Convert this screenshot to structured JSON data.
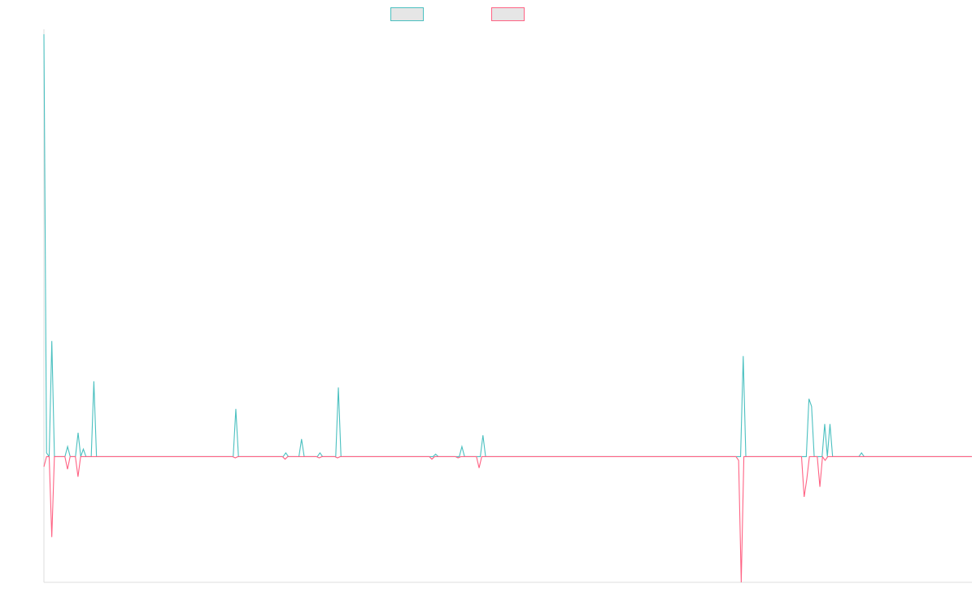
{
  "chart_data": {
    "type": "line",
    "title": "",
    "xlabel": "",
    "ylabel": "",
    "ylim": [
      -1.0,
      3.4
    ],
    "grid": false,
    "legend": {
      "position": "top-center",
      "show_text": false
    },
    "series": [
      {
        "color": "#4bc0c0",
        "fill": "#e6e6e6",
        "values": [
          3.36,
          0.03,
          0,
          0.92,
          0,
          0,
          0,
          0,
          0,
          0.08,
          0,
          0,
          0,
          0.19,
          0,
          0.06,
          0,
          0,
          0,
          0.6,
          0,
          0,
          0,
          0,
          0,
          0,
          0,
          0,
          0,
          0,
          0,
          0,
          0,
          0,
          0,
          0,
          0,
          0,
          0,
          0,
          0,
          0,
          0,
          0,
          0,
          0,
          0,
          0,
          0,
          0,
          0,
          0,
          0,
          0,
          0,
          0,
          0,
          0,
          0,
          0,
          0,
          0,
          0,
          0,
          0,
          0,
          0,
          0,
          0,
          0,
          0,
          0,
          0,
          0.38,
          0,
          0,
          0,
          0,
          0,
          0,
          0,
          0,
          0,
          0,
          0,
          0,
          0,
          0,
          0,
          0,
          0,
          0,
          0.03,
          0,
          0,
          0,
          0,
          0,
          0.14,
          0,
          0,
          0,
          0,
          0,
          0,
          0.03,
          0,
          0,
          0,
          0,
          0,
          0,
          0.55,
          0,
          0,
          0,
          0,
          0,
          0,
          0,
          0,
          0,
          0,
          0,
          0,
          0,
          0,
          0,
          0,
          0,
          0,
          0,
          0,
          0,
          0,
          0,
          0,
          0,
          0,
          0,
          0,
          0,
          0,
          0,
          0,
          0,
          0,
          0,
          0,
          0.02,
          0,
          0,
          0,
          0,
          0,
          0,
          0,
          0,
          0,
          0.08,
          0,
          0,
          0,
          0,
          0,
          0,
          0,
          0.17,
          0,
          0,
          0,
          0,
          0,
          0,
          0,
          0,
          0,
          0,
          0,
          0,
          0,
          0,
          0,
          0,
          0,
          0,
          0,
          0,
          0,
          0,
          0,
          0,
          0,
          0,
          0,
          0,
          0,
          0,
          0,
          0,
          0,
          0,
          0,
          0,
          0,
          0,
          0,
          0,
          0,
          0,
          0,
          0,
          0,
          0,
          0,
          0,
          0,
          0,
          0,
          0,
          0,
          0,
          0,
          0,
          0,
          0,
          0,
          0,
          0,
          0,
          0,
          0,
          0,
          0,
          0,
          0,
          0,
          0,
          0,
          0,
          0,
          0,
          0,
          0,
          0,
          0,
          0,
          0,
          0,
          0,
          0,
          0,
          0,
          0,
          0,
          0,
          0,
          0,
          0,
          0,
          0,
          0,
          0,
          0,
          0,
          0,
          0.8,
          0,
          0,
          0,
          0,
          0,
          0,
          0,
          0,
          0,
          0,
          0,
          0,
          0,
          0,
          0,
          0,
          0,
          0,
          0,
          0,
          0,
          0,
          0,
          0,
          0.46,
          0.4,
          0,
          0,
          0,
          0,
          0.26,
          0,
          0.26,
          0,
          0,
          0,
          0,
          0,
          0,
          0,
          0,
          0,
          0,
          0,
          0.03,
          0,
          0,
          0,
          0,
          0,
          0,
          0,
          0,
          0,
          0,
          0,
          0,
          0,
          0,
          0,
          0,
          0,
          0,
          0,
          0,
          0,
          0,
          0,
          0,
          0,
          0,
          0,
          0,
          0,
          0,
          0,
          0,
          0,
          0,
          0,
          0,
          0,
          0,
          0,
          0,
          0,
          0
        ]
      },
      {
        "color": "#ff6384",
        "fill": "#e6e6e6",
        "values": [
          -0.08,
          0,
          0,
          -0.64,
          0,
          0,
          0,
          0,
          0,
          -0.1,
          0,
          0,
          0,
          -0.16,
          0,
          0,
          0,
          0,
          0,
          0,
          0,
          0,
          0,
          0,
          0,
          0,
          0,
          0,
          0,
          0,
          0,
          0,
          0,
          0,
          0,
          0,
          0,
          0,
          0,
          0,
          0,
          0,
          0,
          0,
          0,
          0,
          0,
          0,
          0,
          0,
          0,
          0,
          0,
          0,
          0,
          0,
          0,
          0,
          0,
          0,
          0,
          0,
          0,
          0,
          0,
          0,
          0,
          0,
          0,
          0,
          0,
          0,
          0,
          -0.01,
          0,
          0,
          0,
          0,
          0,
          0,
          0,
          0,
          0,
          0,
          0,
          0,
          0,
          0,
          0,
          0,
          0,
          0,
          -0.02,
          0,
          0,
          0,
          0,
          0,
          0,
          0,
          0,
          0,
          0,
          0,
          0,
          -0.01,
          0,
          0,
          0,
          0,
          0,
          0,
          -0.01,
          0,
          0,
          0,
          0,
          0,
          0,
          0,
          0,
          0,
          0,
          0,
          0,
          0,
          0,
          0,
          0,
          0,
          0,
          0,
          0,
          0,
          0,
          0,
          0,
          0,
          0,
          0,
          0,
          0,
          0,
          0,
          0,
          0,
          0,
          0,
          -0.02,
          0,
          0,
          0,
          0,
          0,
          0,
          0,
          0,
          0,
          -0.01,
          0,
          0,
          0,
          0,
          0,
          0,
          0,
          -0.09,
          0,
          0,
          0,
          0,
          0,
          0,
          0,
          0,
          0,
          0,
          0,
          0,
          0,
          0,
          0,
          0,
          0,
          0,
          0,
          0,
          0,
          0,
          0,
          0,
          0,
          0,
          0,
          0,
          0,
          0,
          0,
          0,
          0,
          0,
          0,
          0,
          0,
          0,
          0,
          0,
          0,
          0,
          0,
          0,
          0,
          0,
          0,
          0,
          0,
          0,
          0,
          0,
          0,
          0,
          0,
          0,
          0,
          0,
          0,
          0,
          0,
          0,
          0,
          0,
          0,
          0,
          0,
          0,
          0,
          0,
          0,
          0,
          0,
          0,
          0,
          0,
          0,
          0,
          0,
          0,
          0,
          0,
          0,
          0,
          0,
          0,
          0,
          0,
          0,
          0,
          0,
          0,
          0,
          0,
          0,
          0,
          0,
          0,
          -0.03,
          -1.0,
          0,
          0,
          0,
          0,
          0,
          0,
          0,
          0,
          0,
          0,
          0,
          0,
          0,
          0,
          0,
          0,
          0,
          0,
          0,
          0,
          0,
          0,
          0,
          -0.32,
          -0.18,
          0,
          0,
          0,
          0,
          -0.24,
          0,
          -0.03,
          0,
          0,
          0,
          0,
          0,
          0,
          0,
          0,
          0,
          0,
          0,
          0,
          0,
          0,
          0,
          0,
          0,
          0,
          0,
          0,
          0,
          0,
          0,
          0,
          0,
          0,
          0,
          0,
          0,
          0,
          0,
          0,
          0,
          0,
          0,
          0,
          0,
          0,
          0,
          0,
          0,
          0,
          0,
          0,
          0,
          0,
          0,
          0,
          0,
          0,
          0,
          0,
          0,
          0,
          0,
          0
        ]
      }
    ],
    "axis_color": "#dddddd"
  }
}
